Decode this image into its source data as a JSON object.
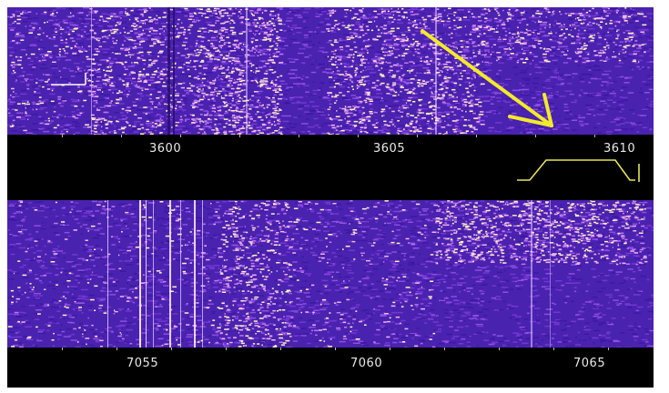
{
  "top_band": {
    "frequency_labels": [
      "3600",
      "3605",
      "3610"
    ],
    "colors": {
      "background": "#000000",
      "waterfall_base": "#4a22b0",
      "signal": "#ffe9a8",
      "filter_outline": "#e6e45a"
    }
  },
  "bottom_band": {
    "frequency_labels": [
      "7055",
      "7060",
      "7065"
    ]
  },
  "annotations": {
    "arrow_color": "#f2ea2a",
    "marker_color": "#ffffff"
  },
  "icons": [
    "arrow-icon",
    "filter-passband-icon",
    "tuning-marker-icon"
  ]
}
